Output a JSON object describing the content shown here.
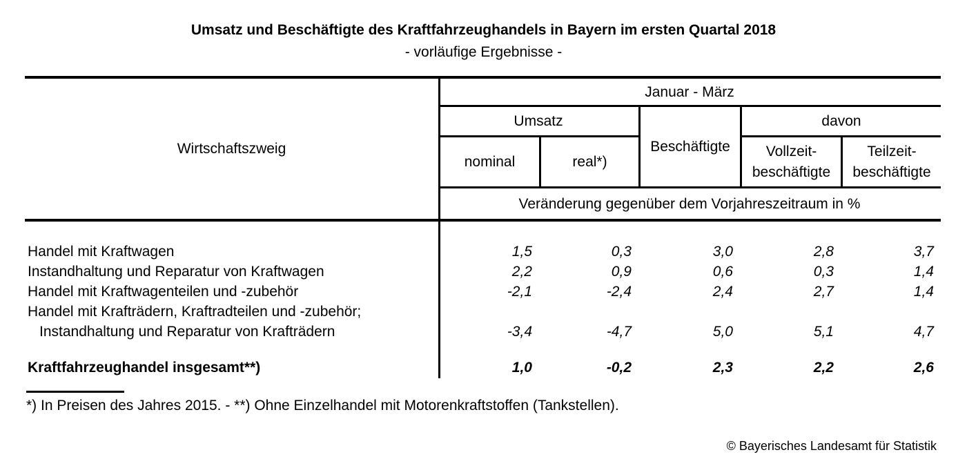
{
  "page": {
    "title": "Umsatz und Beschäftigte des Kraftfahrzeughandels in Bayern im ersten Quartal 2018",
    "subtitle": "- vorläufige Ergebnisse -",
    "footnote": "*) In Preisen des Jahres 2015. - **) Ohne Einzelhandel mit Motorenkraftstoffen (Tankstellen).",
    "copyright": "© Bayerisches Landesamt für Statistik"
  },
  "table": {
    "header": {
      "wirtschaftszweig": "Wirtschaftszweig",
      "period": "Januar - März",
      "umsatz": "Umsatz",
      "beschaeftigte": "Beschäftigte",
      "davon": "davon",
      "nominal": "nominal",
      "real": "real*)",
      "vollzeit_line1": "Vollzeit-",
      "vollzeit_line2": "beschäftigte",
      "teilzeit_line1": "Teilzeit-",
      "teilzeit_line2": "beschäftigte",
      "unit_note": "Veränderung gegenüber dem Vorjahreszeitraum in %"
    },
    "rows": [
      {
        "label": "Handel mit Kraftwagen",
        "values": [
          "1,5",
          "0,3",
          "3,0",
          "2,8",
          "3,7"
        ]
      },
      {
        "label": "Instandhaltung und Reparatur von Kraftwagen",
        "values": [
          "2,2",
          "0,9",
          "0,6",
          "0,3",
          "1,4"
        ]
      },
      {
        "label": "Handel mit Kraftwagenteilen und -zubehör",
        "values": [
          "-2,1",
          "-2,4",
          "2,4",
          "2,7",
          "1,4"
        ]
      },
      {
        "label_line1": "Handel mit Krafträdern, Kraftradteilen und -zubehör;",
        "label_line2": "Instandhaltung und Reparatur von Krafträdern",
        "values": [
          "-3,4",
          "-4,7",
          "5,0",
          "5,1",
          "4,7"
        ]
      }
    ],
    "total_row": {
      "label": "Kraftfahrzeughandel insgesamt**)",
      "values": [
        "1,0",
        "-0,2",
        "2,3",
        "2,2",
        "2,6"
      ]
    }
  }
}
